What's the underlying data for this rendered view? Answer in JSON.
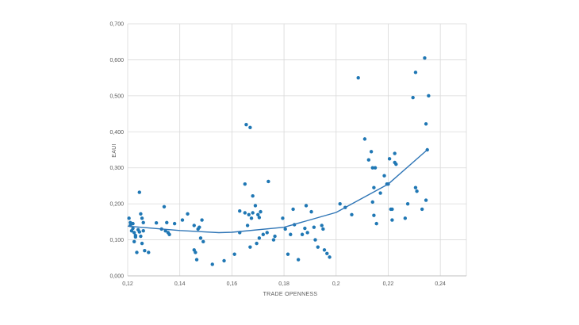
{
  "chart_data": {
    "type": "scatter",
    "xlabel": "TRADE OPENNESS",
    "ylabel": "EAUI",
    "xlim": [
      0.12,
      0.25
    ],
    "ylim": [
      0,
      0.7
    ],
    "x_ticks": [
      "0,12",
      "0,14",
      "0,16",
      "0,18",
      "0,2",
      "0,22",
      "0,24"
    ],
    "y_ticks": [
      "0,000",
      "0,100",
      "0,200",
      "0,300",
      "0,400",
      "0,500",
      "0,600",
      "0,700"
    ],
    "grid": "vertical and horizontal major gridlines",
    "point_color": "#1f77b4",
    "trendline": {
      "kind": "polynomial, order 2",
      "color": "#2e75b6",
      "points": [
        [
          0.12,
          0.138
        ],
        [
          0.14,
          0.126
        ],
        [
          0.155,
          0.12
        ],
        [
          0.16,
          0.121
        ],
        [
          0.18,
          0.135
        ],
        [
          0.2,
          0.176
        ],
        [
          0.22,
          0.255
        ],
        [
          0.235,
          0.35
        ]
      ]
    },
    "points": [
      [
        0.1205,
        0.16
      ],
      [
        0.121,
        0.148
      ],
      [
        0.121,
        0.14
      ],
      [
        0.1215,
        0.125
      ],
      [
        0.122,
        0.145
      ],
      [
        0.122,
        0.132
      ],
      [
        0.1225,
        0.095
      ],
      [
        0.1225,
        0.12
      ],
      [
        0.123,
        0.108
      ],
      [
        0.123,
        0.112
      ],
      [
        0.1235,
        0.065
      ],
      [
        0.124,
        0.128
      ],
      [
        0.1245,
        0.122
      ],
      [
        0.1245,
        0.232
      ],
      [
        0.125,
        0.172
      ],
      [
        0.125,
        0.11
      ],
      [
        0.1255,
        0.16
      ],
      [
        0.1255,
        0.09
      ],
      [
        0.126,
        0.148
      ],
      [
        0.126,
        0.125
      ],
      [
        0.1265,
        0.07
      ],
      [
        0.128,
        0.065
      ],
      [
        0.131,
        0.147
      ],
      [
        0.133,
        0.13
      ],
      [
        0.134,
        0.192
      ],
      [
        0.1345,
        0.125
      ],
      [
        0.135,
        0.148
      ],
      [
        0.1355,
        0.12
      ],
      [
        0.136,
        0.115
      ],
      [
        0.138,
        0.145
      ],
      [
        0.141,
        0.155
      ],
      [
        0.143,
        0.172
      ],
      [
        0.1455,
        0.14
      ],
      [
        0.1455,
        0.072
      ],
      [
        0.146,
        0.065
      ],
      [
        0.1465,
        0.045
      ],
      [
        0.147,
        0.13
      ],
      [
        0.1475,
        0.135
      ],
      [
        0.148,
        0.105
      ],
      [
        0.1485,
        0.155
      ],
      [
        0.149,
        0.095
      ],
      [
        0.1525,
        0.032
      ],
      [
        0.157,
        0.042
      ],
      [
        0.161,
        0.06
      ],
      [
        0.163,
        0.18
      ],
      [
        0.163,
        0.12
      ],
      [
        0.165,
        0.175
      ],
      [
        0.165,
        0.255
      ],
      [
        0.1655,
        0.42
      ],
      [
        0.166,
        0.14
      ],
      [
        0.1665,
        0.17
      ],
      [
        0.167,
        0.412
      ],
      [
        0.167,
        0.08
      ],
      [
        0.1675,
        0.16
      ],
      [
        0.168,
        0.222
      ],
      [
        0.168,
        0.175
      ],
      [
        0.169,
        0.195
      ],
      [
        0.1695,
        0.09
      ],
      [
        0.17,
        0.17
      ],
      [
        0.1705,
        0.162
      ],
      [
        0.1705,
        0.105
      ],
      [
        0.171,
        0.178
      ],
      [
        0.172,
        0.115
      ],
      [
        0.1735,
        0.12
      ],
      [
        0.174,
        0.262
      ],
      [
        0.176,
        0.1
      ],
      [
        0.1765,
        0.11
      ],
      [
        0.1795,
        0.16
      ],
      [
        0.1805,
        0.13
      ],
      [
        0.1815,
        0.06
      ],
      [
        0.1825,
        0.115
      ],
      [
        0.1835,
        0.185
      ],
      [
        0.184,
        0.142
      ],
      [
        0.1855,
        0.045
      ],
      [
        0.187,
        0.115
      ],
      [
        0.188,
        0.132
      ],
      [
        0.1885,
        0.195
      ],
      [
        0.189,
        0.12
      ],
      [
        0.1905,
        0.178
      ],
      [
        0.1915,
        0.135
      ],
      [
        0.192,
        0.1
      ],
      [
        0.193,
        0.08
      ],
      [
        0.1945,
        0.14
      ],
      [
        0.195,
        0.13
      ],
      [
        0.1955,
        0.072
      ],
      [
        0.1965,
        0.062
      ],
      [
        0.1975,
        0.052
      ],
      [
        0.2015,
        0.2
      ],
      [
        0.2035,
        0.19
      ],
      [
        0.206,
        0.17
      ],
      [
        0.2085,
        0.55
      ],
      [
        0.211,
        0.38
      ],
      [
        0.2125,
        0.322
      ],
      [
        0.2135,
        0.345
      ],
      [
        0.214,
        0.3
      ],
      [
        0.214,
        0.205
      ],
      [
        0.2145,
        0.245
      ],
      [
        0.2145,
        0.168
      ],
      [
        0.215,
        0.3
      ],
      [
        0.2155,
        0.145
      ],
      [
        0.217,
        0.23
      ],
      [
        0.2185,
        0.278
      ],
      [
        0.2195,
        0.255
      ],
      [
        0.22,
        0.255
      ],
      [
        0.2205,
        0.325
      ],
      [
        0.221,
        0.185
      ],
      [
        0.2215,
        0.155
      ],
      [
        0.2215,
        0.185
      ],
      [
        0.2225,
        0.34
      ],
      [
        0.2225,
        0.315
      ],
      [
        0.223,
        0.31
      ],
      [
        0.2265,
        0.16
      ],
      [
        0.2275,
        0.2
      ],
      [
        0.2295,
        0.495
      ],
      [
        0.2305,
        0.565
      ],
      [
        0.2305,
        0.245
      ],
      [
        0.231,
        0.235
      ],
      [
        0.233,
        0.185
      ],
      [
        0.234,
        0.605
      ],
      [
        0.2345,
        0.21
      ],
      [
        0.2345,
        0.422
      ],
      [
        0.235,
        0.35
      ],
      [
        0.2355,
        0.5
      ]
    ]
  }
}
